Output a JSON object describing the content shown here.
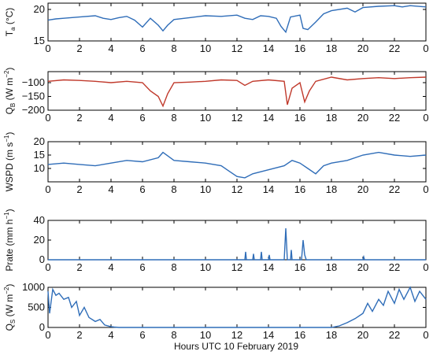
{
  "figure": {
    "xlabel": "Hours UTC  10 February 2019",
    "x_ticks": [
      "0",
      "2",
      "4",
      "6",
      "8",
      "10",
      "12",
      "14",
      "16",
      "18",
      "20",
      "22",
      "0"
    ]
  },
  "chart_data": [
    {
      "type": "line",
      "ylabel": "Ta (°C)",
      "ylabel_parts": {
        "main": "T",
        "sub": "a",
        "rest": " (°C)"
      },
      "ylim": [
        15,
        21
      ],
      "y_ticks": [
        15,
        20
      ],
      "series": [
        {
          "color": "#2f6db8",
          "x": [
            0,
            0.5,
            1,
            2,
            3,
            3.5,
            4,
            4.5,
            5,
            5.5,
            6,
            6.5,
            7,
            7.3,
            7.6,
            8,
            9,
            10,
            11,
            12,
            12.5,
            13,
            13.5,
            14,
            14.5,
            14.8,
            15.1,
            15.4,
            16,
            16.2,
            16.5,
            17,
            17.5,
            18,
            19,
            19.5,
            20,
            21,
            22,
            22.5,
            23,
            24
          ],
          "y": [
            18.3,
            18.5,
            18.6,
            18.8,
            19.0,
            18.6,
            18.4,
            18.7,
            18.9,
            18.3,
            17.2,
            18.6,
            17.5,
            16.6,
            17.5,
            18.4,
            18.7,
            19.0,
            18.9,
            19.1,
            18.6,
            18.4,
            19.0,
            18.9,
            18.6,
            17.3,
            16.4,
            18.8,
            19.1,
            17.0,
            16.8,
            18.0,
            19.3,
            19.8,
            20.2,
            19.6,
            20.3,
            20.5,
            20.6,
            20.4,
            20.6,
            20.4
          ]
        }
      ]
    },
    {
      "type": "line",
      "ylabel": "QB (W m−2)",
      "ylabel_parts": {
        "main": "Q",
        "sub": "B",
        "rest": " (W m",
        "sup": "−2",
        "end": ")"
      },
      "ylim": [
        -200,
        -60
      ],
      "y_ticks": [
        -200,
        -150,
        -100
      ],
      "series": [
        {
          "color": "#c0392b",
          "x": [
            0,
            1,
            2,
            3,
            4,
            5,
            6,
            6.5,
            7,
            7.3,
            7.6,
            8,
            9,
            10,
            11,
            12,
            12.5,
            13,
            14,
            15,
            15.2,
            15.5,
            16,
            16.3,
            16.6,
            17,
            18,
            19,
            20,
            21,
            22,
            23,
            24
          ],
          "y": [
            -95,
            -90,
            -92,
            -95,
            -100,
            -95,
            -100,
            -130,
            -150,
            -185,
            -140,
            -100,
            -98,
            -95,
            -90,
            -92,
            -110,
            -95,
            -90,
            -95,
            -180,
            -120,
            -100,
            -170,
            -130,
            -95,
            -80,
            -90,
            -85,
            -82,
            -85,
            -82,
            -80
          ]
        }
      ]
    },
    {
      "type": "line",
      "ylabel": "WSPD (m s−1)",
      "ylabel_parts": {
        "main": "WSPD",
        "sub": "",
        "rest": " (m s",
        "sup": "−1",
        "end": ")"
      },
      "ylim": [
        5,
        20
      ],
      "y_ticks": [
        10,
        15,
        20
      ],
      "series": [
        {
          "color": "#2f6db8",
          "x": [
            0,
            1,
            2,
            3,
            4,
            5,
            6,
            7,
            7.3,
            8,
            9,
            10,
            11,
            11.5,
            12,
            12.5,
            13,
            14,
            15,
            15.5,
            16,
            16.5,
            17,
            17.5,
            18,
            19,
            20,
            21,
            22,
            23,
            24
          ],
          "y": [
            11.5,
            12,
            11.5,
            11,
            12,
            13,
            12.5,
            14,
            16,
            13,
            12.5,
            12,
            11,
            9,
            7,
            6.5,
            8,
            9.5,
            11,
            13,
            12,
            10,
            8,
            11,
            12,
            13,
            15,
            16,
            15,
            14.5,
            15
          ]
        }
      ]
    },
    {
      "type": "line",
      "ylabel": "Prate (mm h−1)",
      "ylabel_parts": {
        "main": "Prate",
        "sub": "",
        "rest": " (mm h",
        "sup": "−1",
        "end": ")"
      },
      "ylim": [
        0,
        40
      ],
      "y_ticks": [
        0,
        20,
        40
      ],
      "series": [
        {
          "color": "#2f6db8",
          "x": [
            0,
            12.5,
            12.55,
            12.6,
            13.0,
            13.05,
            13.1,
            13.5,
            13.55,
            13.6,
            14.0,
            14.05,
            14.1,
            15.0,
            15.1,
            15.2,
            15.4,
            15.45,
            15.5,
            16.1,
            16.2,
            16.3,
            16.4,
            20.0,
            20.05,
            20.1,
            24
          ],
          "y": [
            0,
            0,
            8,
            0,
            0,
            6,
            0,
            0,
            8,
            0,
            0,
            5,
            0,
            0,
            32,
            0,
            0,
            10,
            0,
            0,
            20,
            5,
            0,
            0,
            3,
            0,
            0
          ]
        }
      ]
    },
    {
      "type": "line",
      "ylabel": "QS (W m−2)",
      "ylabel_parts": {
        "main": "Q",
        "sub": "S",
        "rest": " (W m",
        "sup": "−2",
        "end": ")"
      },
      "ylim": [
        0,
        1000
      ],
      "y_ticks": [
        0,
        500,
        1000
      ],
      "series": [
        {
          "color": "#2f6db8",
          "x": [
            0,
            0.1,
            0.3,
            0.5,
            0.7,
            1.0,
            1.3,
            1.5,
            1.8,
            2.0,
            2.3,
            2.6,
            3.0,
            3.3,
            3.6,
            4.0,
            4.2,
            4.5,
            5,
            18,
            18.5,
            19,
            19.5,
            20,
            20.3,
            20.6,
            21,
            21.3,
            21.6,
            22,
            22.3,
            22.6,
            23,
            23.3,
            23.6,
            24
          ],
          "y": [
            900,
            350,
            950,
            800,
            850,
            700,
            750,
            500,
            650,
            300,
            500,
            250,
            150,
            200,
            60,
            20,
            10,
            0,
            0,
            0,
            40,
            120,
            220,
            350,
            600,
            400,
            700,
            550,
            900,
            600,
            950,
            700,
            1000,
            650,
            900,
            700
          ]
        }
      ]
    }
  ]
}
